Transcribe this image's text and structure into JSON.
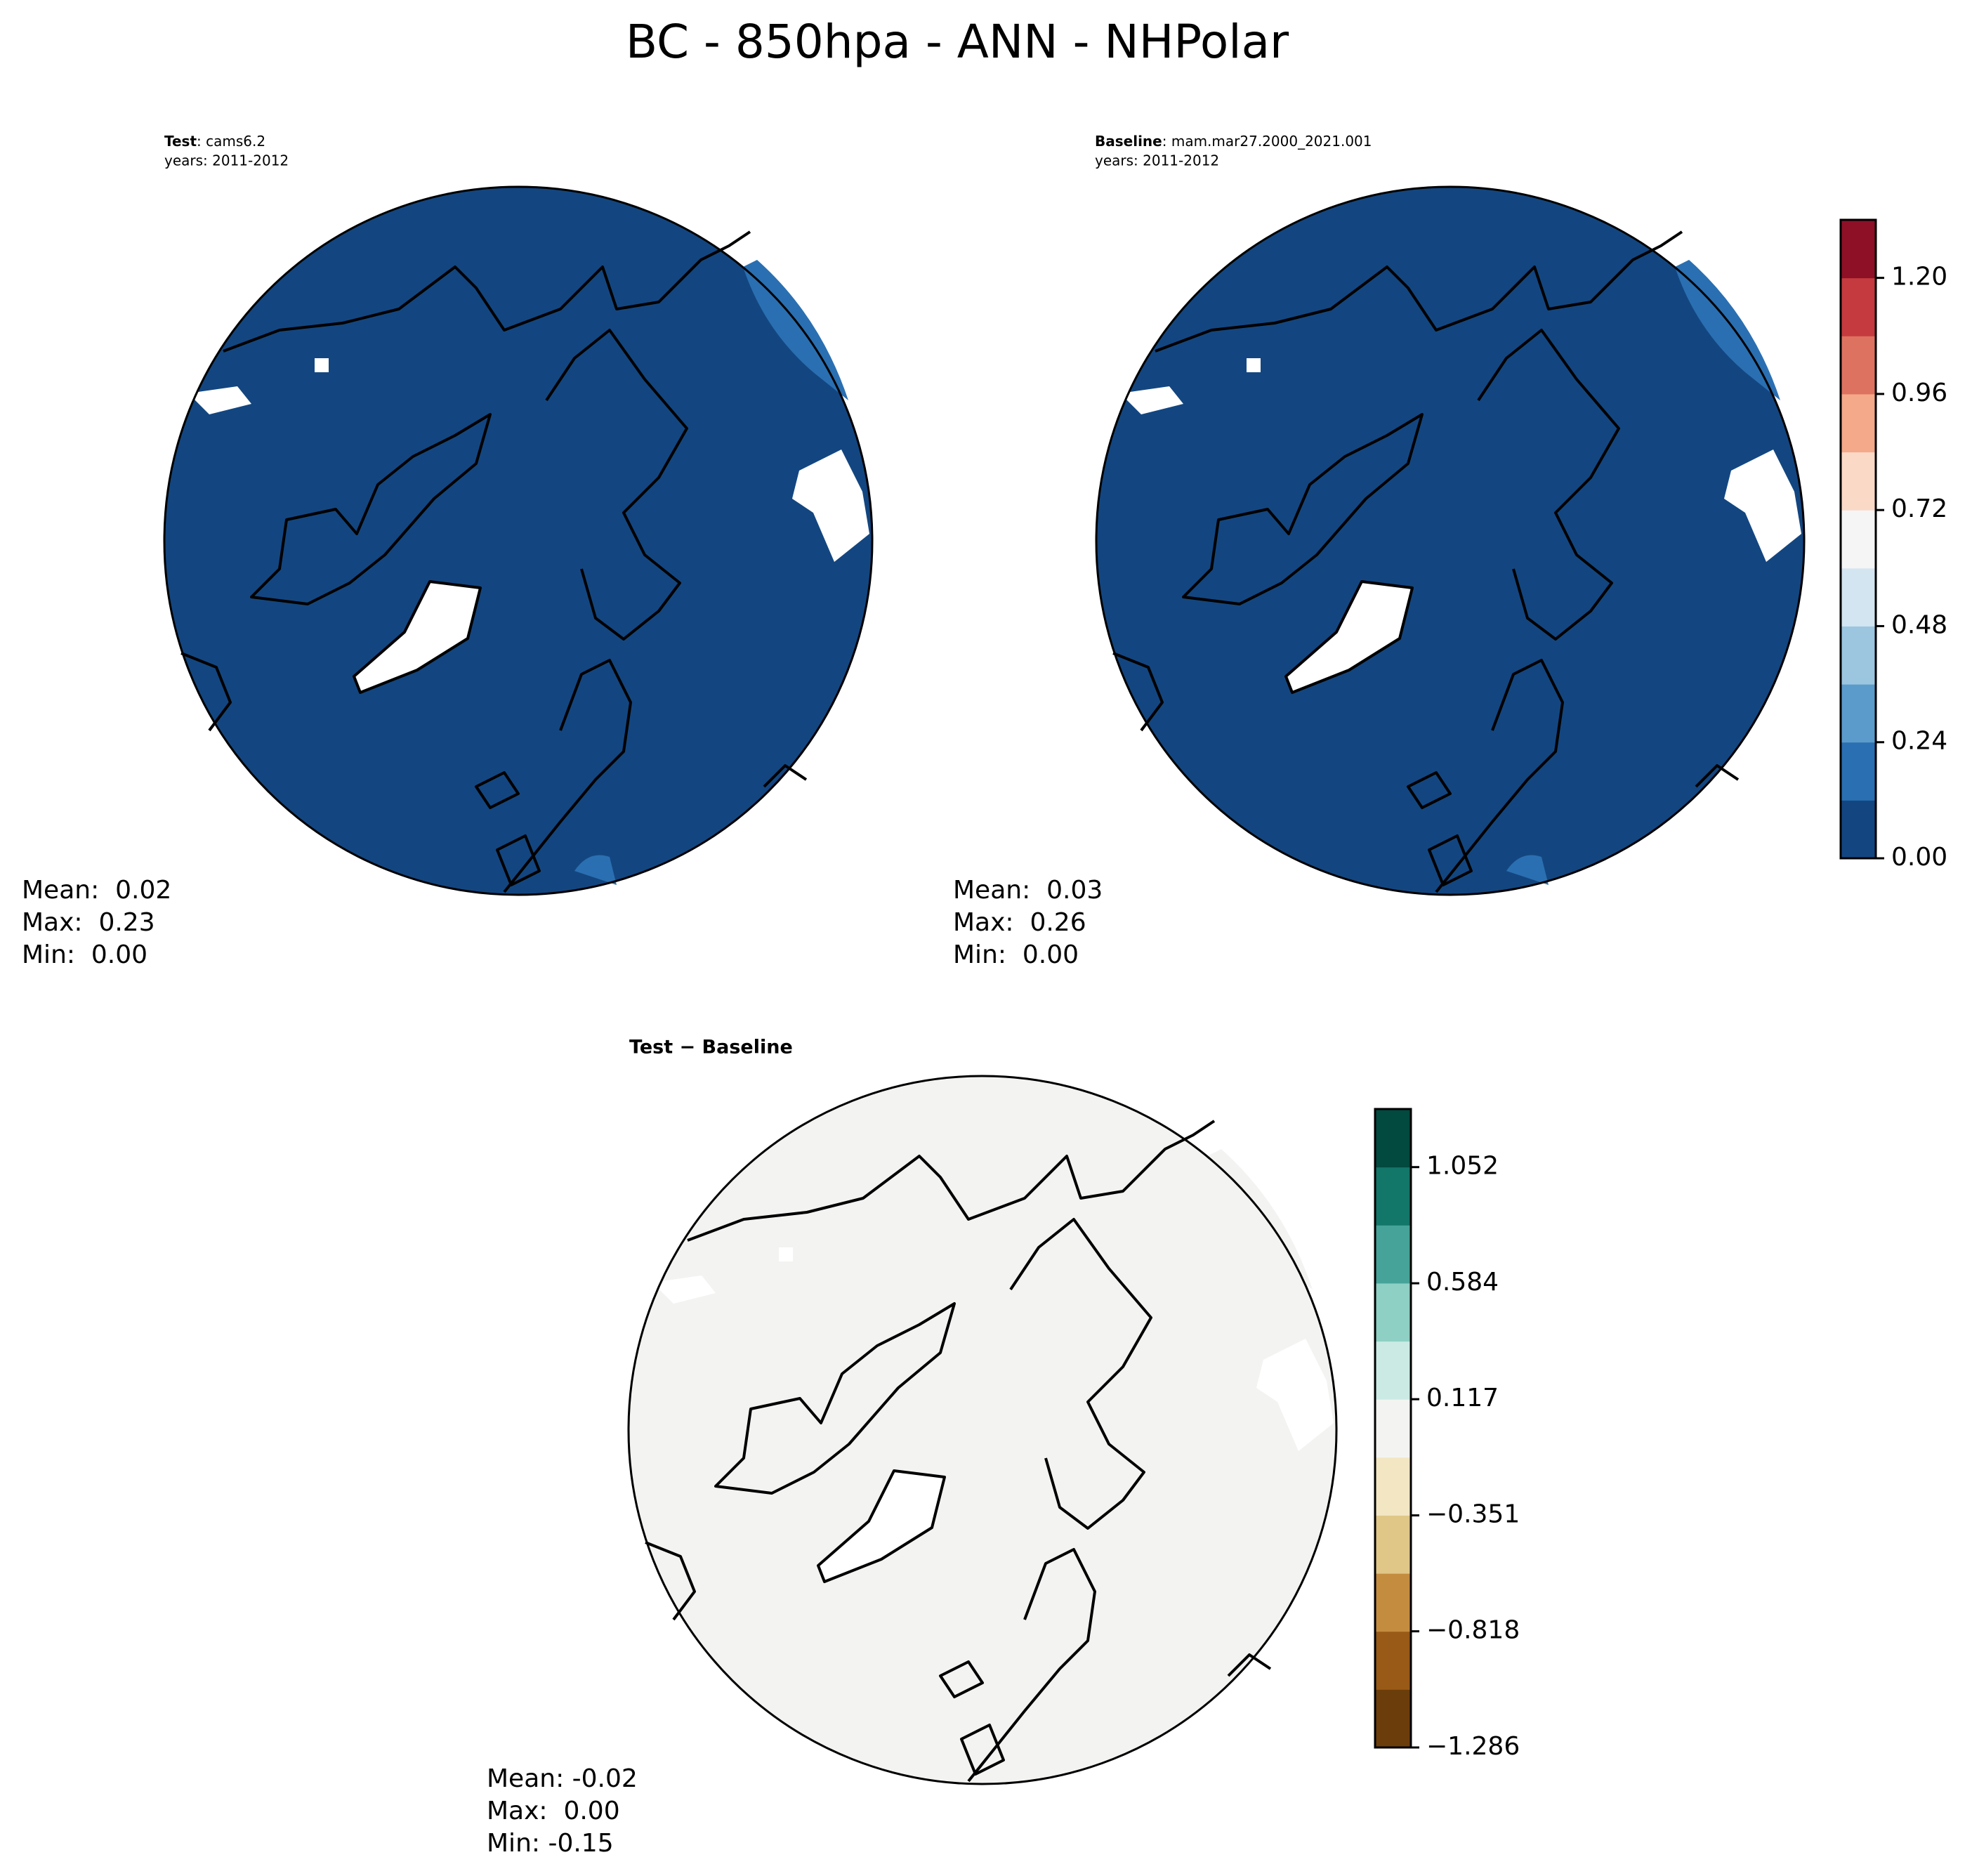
{
  "title": "BC - 850hpa - ANN - NHPolar",
  "panels": [
    {
      "name": "Test",
      "label": ": cams6.2",
      "years": "years: 2011-2012",
      "stats": [
        "Mean:  0.02",
        "Max:  0.23",
        "Min:  0.00"
      ]
    },
    {
      "name": "Baseline",
      "label": ": mam.mar27.2000_2021.001",
      "years": "years: 2011-2012",
      "stats": [
        "Mean:  0.03",
        "Max:  0.26",
        "Min:  0.00"
      ]
    },
    {
      "name": "Test − Baseline",
      "stats": [
        "Mean: -0.02",
        "Max:  0.00",
        "Min: -0.15"
      ]
    }
  ],
  "colorbars": [
    {
      "lim": [
        0,
        1.32
      ],
      "colors": [
        "#134680",
        "#2a6fb1",
        "#5b9bcb",
        "#9cc6e0",
        "#d3e5f0",
        "#f5f5f5",
        "#fbd9c7",
        "#f4a98a",
        "#de7260",
        "#c53a3e",
        "#8d1027"
      ],
      "ticks": [
        {
          "value": 0,
          "label": "0.00"
        },
        {
          "value": 0.24,
          "label": "0.24"
        },
        {
          "value": 0.48,
          "label": "0.48"
        },
        {
          "value": 0.72,
          "label": "0.72"
        },
        {
          "value": 0.96,
          "label": "0.96"
        },
        {
          "value": 1.2,
          "label": "1.20"
        }
      ]
    },
    {
      "lim": [
        -1.286,
        1.286
      ],
      "colors": [
        "#6b3d0a",
        "#985a16",
        "#c48c3f",
        "#e0c788",
        "#f3e6c3",
        "#f3f4f2",
        "#cbeae4",
        "#8ed0c3",
        "#46a399",
        "#127669",
        "#02493f"
      ],
      "ticks": [
        {
          "value": -1.286,
          "label": "−1.286"
        },
        {
          "value": -0.818,
          "label": "−0.818"
        },
        {
          "value": -0.351,
          "label": "−0.351"
        },
        {
          "value": 0.117,
          "label": "0.117"
        },
        {
          "value": 0.584,
          "label": "0.584"
        },
        {
          "value": 1.052,
          "label": "1.052"
        }
      ]
    }
  ]
}
